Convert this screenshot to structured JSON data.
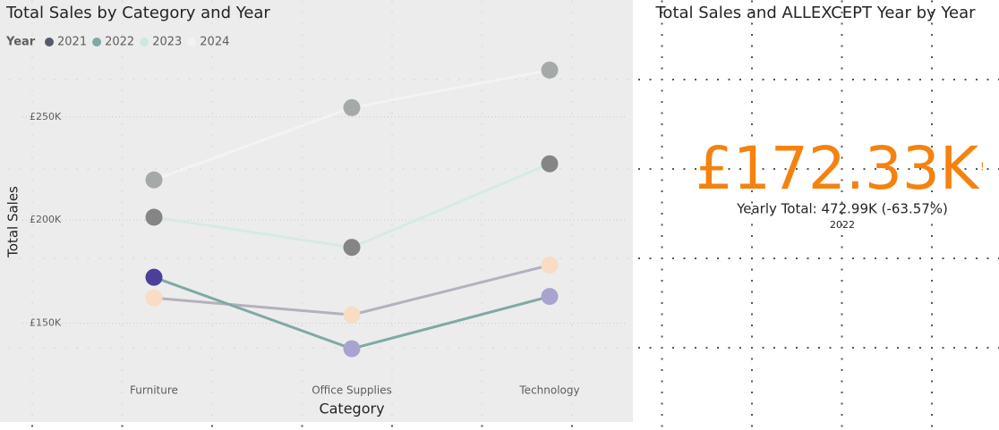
{
  "chart_data": {
    "type": "dot-line",
    "title": "Total Sales by Category and Year",
    "legend_title": "Year",
    "x_label": "Category",
    "y_label": "Total Sales",
    "categories": [
      "Furniture",
      "Office Supplies",
      "Technology"
    ],
    "series": [
      {
        "name": "2021",
        "color": "#555a6a",
        "line_color": "#b3b1bd",
        "point_colors": [
          "#f8dcc4",
          "#f8dcc4",
          "#f8dcc4"
        ],
        "values": [
          162.3,
          154.1,
          178.2
        ]
      },
      {
        "name": "2022",
        "color": "#7fa9a5",
        "line_color": "#7fa9a5",
        "point_colors": [
          "#4b3f99",
          "#a8a4cf",
          "#a8a4cf"
        ],
        "values": [
          172.3,
          137.7,
          163.0
        ]
      },
      {
        "name": "2023",
        "color": "#cfe8dc",
        "line_color": "#d6ebe2",
        "point_colors": [
          "#858585",
          "#858585",
          "#858585"
        ],
        "values": [
          201.4,
          186.8,
          227.3
        ]
      },
      {
        "name": "2024",
        "color": "#f2f2f2",
        "line_color": "#f3f3f3",
        "point_colors": [
          "#a5aaa8",
          "#a5aaa8",
          "#a5aaa8"
        ],
        "values": [
          219.5,
          254.5,
          272.7
        ]
      }
    ],
    "ylim": [
      123,
      285
    ],
    "yticks": [
      {
        "value": 150,
        "label": "£150K"
      },
      {
        "value": 200,
        "label": "£200K"
      },
      {
        "value": 250,
        "label": "£250K"
      }
    ],
    "grid": true
  },
  "card": {
    "title": "Total Sales and ALLEXCEPT Year by Year",
    "value": "£172.33K",
    "warning": "!",
    "subtitle": "Yearly Total: 472.99K (-63.57%)",
    "caption": "2022",
    "color": "#f5820f"
  }
}
